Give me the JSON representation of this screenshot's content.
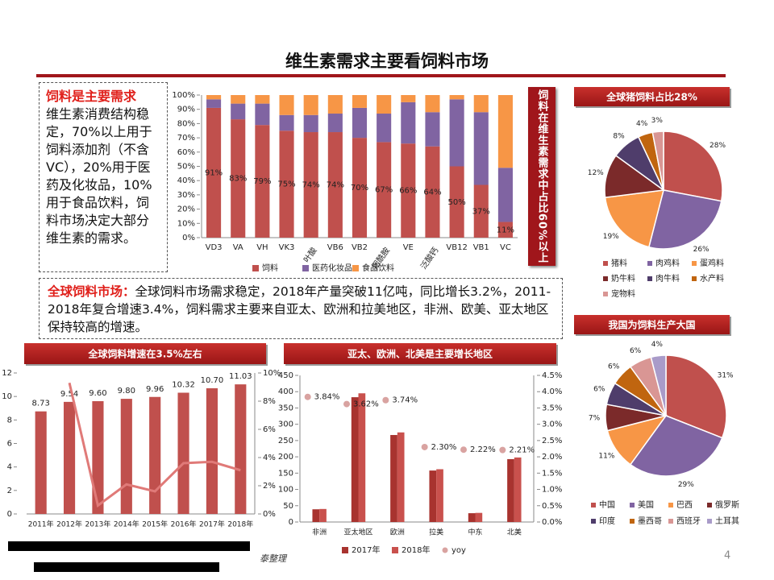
{
  "title": "维生素需求主要看饲料市场",
  "demand_note": {
    "heading": "饲料是主要需求",
    "body": "维生素消费结构稳定，70%以上用于饲料添加剂（不含VC），20%用于医药及化妆品，10%用于食品饮料，饲料市场决定大部分维生素的需求。"
  },
  "market_note": {
    "heading": "全球饲料市场：",
    "body": "全球饲料市场需求稳定，2018年产量突破11亿吨，同比增长3.2%，2011-2018年复合增速3.4%，饲料需求主要来自亚太、欧洲和拉美地区，非洲、欧美、亚太地区保持较高的增速。"
  },
  "callout": "饲料在维生素需求中占比60%以上",
  "footer": {
    "source": "泰整理",
    "page": "4"
  },
  "chart_data": [
    {
      "type": "stacked_bar",
      "categories": [
        "VD3",
        "VA",
        "VH",
        "VK3",
        "叶酸",
        "VB6",
        "VB2",
        "烟酰胺",
        "VE",
        "泛酸钙",
        "VB12",
        "VB1",
        "VC"
      ],
      "series": [
        {
          "name": "饲料",
          "color": "#c0504d",
          "values": [
            91,
            83,
            79,
            75,
            74,
            74,
            70,
            67,
            66,
            64,
            50,
            37,
            11
          ],
          "value_labels": [
            "91%",
            "83%",
            "79%",
            "75%",
            "74%",
            "74%",
            "70%",
            "67%",
            "66%",
            "64%",
            "50%",
            "37%",
            "11%"
          ]
        },
        {
          "name": "医药化妆品",
          "color": "#8064a2",
          "values": [
            6,
            11,
            15,
            11,
            12,
            13,
            21,
            20,
            29,
            24,
            47,
            51,
            38
          ]
        },
        {
          "name": "食品饮料",
          "color": "#f79646",
          "values": [
            3,
            6,
            6,
            14,
            14,
            13,
            9,
            13,
            5,
            12,
            3,
            12,
            51
          ]
        }
      ],
      "ylim": [
        0,
        100
      ],
      "yticks": [
        {
          "value": 0,
          "label": "0%"
        },
        {
          "value": 10,
          "label": "10%"
        },
        {
          "value": 20,
          "label": "20%"
        },
        {
          "value": 30,
          "label": "30%"
        },
        {
          "value": 40,
          "label": "40%"
        },
        {
          "value": 50,
          "label": "50%"
        },
        {
          "value": 60,
          "label": "60%"
        },
        {
          "value": 70,
          "label": "70%"
        },
        {
          "value": 80,
          "label": "80%"
        },
        {
          "value": 90,
          "label": "90%"
        },
        {
          "value": 100,
          "label": "100%"
        }
      ],
      "legend": "bottom"
    },
    {
      "type": "pie",
      "title": "全球猪饲料占比28%",
      "categories": [
        "猪料",
        "肉鸡料",
        "蛋鸡料",
        "奶牛料",
        "肉牛料",
        "水产料",
        "宠物料"
      ],
      "values": [
        28,
        26,
        19,
        12,
        8,
        4,
        3
      ],
      "value_labels": [
        "28%",
        "26%",
        "19%",
        "12%",
        "8%",
        "4%",
        "3%"
      ],
      "colors": [
        "#c0504d",
        "#8064a2",
        "#f79646",
        "#7b2a2a",
        "#4f3d6b",
        "#c0650f",
        "#d99694"
      ],
      "legend": "bottom"
    },
    {
      "type": "pie",
      "title": "我国为饲料生产大国",
      "categories": [
        "中国",
        "美国",
        "巴西",
        "俄罗斯",
        "印度",
        "墨西哥",
        "西班牙",
        "土耳其"
      ],
      "values": [
        31,
        29,
        11,
        7,
        6,
        6,
        6,
        4
      ],
      "value_labels": [
        "31%",
        "29%",
        "11%",
        "7%",
        "6%",
        "6%",
        "6%",
        "4%"
      ],
      "colors": [
        "#c0504d",
        "#8064a2",
        "#f79646",
        "#7b2a2a",
        "#4f3d6b",
        "#c0650f",
        "#d99694",
        "#a99bc9"
      ],
      "legend": "bottom"
    },
    {
      "type": "bar_line",
      "title": "全球饲料增速在3.5%左右",
      "categories": [
        "2011年",
        "2012年",
        "2013年",
        "2014年",
        "2015年",
        "2016年",
        "2017年",
        "2018年"
      ],
      "series": [
        {
          "color": "#c0504d",
          "values": [
            8.73,
            9.54,
            9.6,
            9.8,
            9.96,
            10.32,
            10.7,
            11.03
          ],
          "value_labels": [
            "8.73",
            "9.54",
            "9.60",
            "9.80",
            "9.96",
            "10.32",
            "10.70",
            "11.03"
          ]
        },
        {
          "color": "#e07a78",
          "axis": "y2",
          "values": [
            null,
            9.3,
            0.6,
            2.1,
            1.6,
            3.6,
            3.7,
            3.1
          ]
        }
      ],
      "ylim": [
        0,
        12
      ],
      "yticks": [
        0,
        2,
        4,
        6,
        8,
        10,
        12
      ],
      "y2lim": [
        0,
        10
      ],
      "y2ticks": [
        {
          "value": 0,
          "label": "0%"
        },
        {
          "value": 2,
          "label": "2%"
        },
        {
          "value": 4,
          "label": "4%"
        },
        {
          "value": 6,
          "label": "6%"
        },
        {
          "value": 8,
          "label": "8%"
        },
        {
          "value": 10,
          "label": "10%"
        }
      ]
    },
    {
      "type": "grouped_bar",
      "title": "亚太、欧洲、北美是主要增长地区",
      "categories": [
        "非洲",
        "亚太地区",
        "欧洲",
        "拉美",
        "中东",
        "北美"
      ],
      "series": [
        {
          "name": "2017年",
          "color": "#a8332f",
          "values": [
            39,
            383,
            267,
            158,
            27,
            193
          ]
        },
        {
          "name": "2018年",
          "color": "#c9514d",
          "values": [
            40,
            395,
            275,
            162,
            28,
            198
          ]
        },
        {
          "name": "yoy",
          "color": "#d9a3a1",
          "axis": "y2",
          "values": [
            3.84,
            3.62,
            3.74,
            2.3,
            2.22,
            2.21
          ],
          "value_labels": [
            "3.84%",
            "3.62%",
            "3.74%",
            "2.30%",
            "2.22%",
            "2.21%"
          ]
        }
      ],
      "ylim": [
        0,
        450
      ],
      "yticks": [
        0,
        50,
        100,
        150,
        200,
        250,
        300,
        350,
        400,
        450
      ],
      "y2lim": [
        0,
        4.5
      ],
      "y2ticks": [
        {
          "value": 0,
          "label": "0.0%"
        },
        {
          "value": 0.5,
          "label": "0.5%"
        },
        {
          "value": 1,
          "label": "1.0%"
        },
        {
          "value": 1.5,
          "label": "1.5%"
        },
        {
          "value": 2,
          "label": "2.0%"
        },
        {
          "value": 2.5,
          "label": "2.5%"
        },
        {
          "value": 3,
          "label": "3.0%"
        },
        {
          "value": 3.5,
          "label": "3.5%"
        },
        {
          "value": 4,
          "label": "4.0%"
        },
        {
          "value": 4.5,
          "label": "4.5%"
        }
      ],
      "legend": "bottom"
    }
  ]
}
